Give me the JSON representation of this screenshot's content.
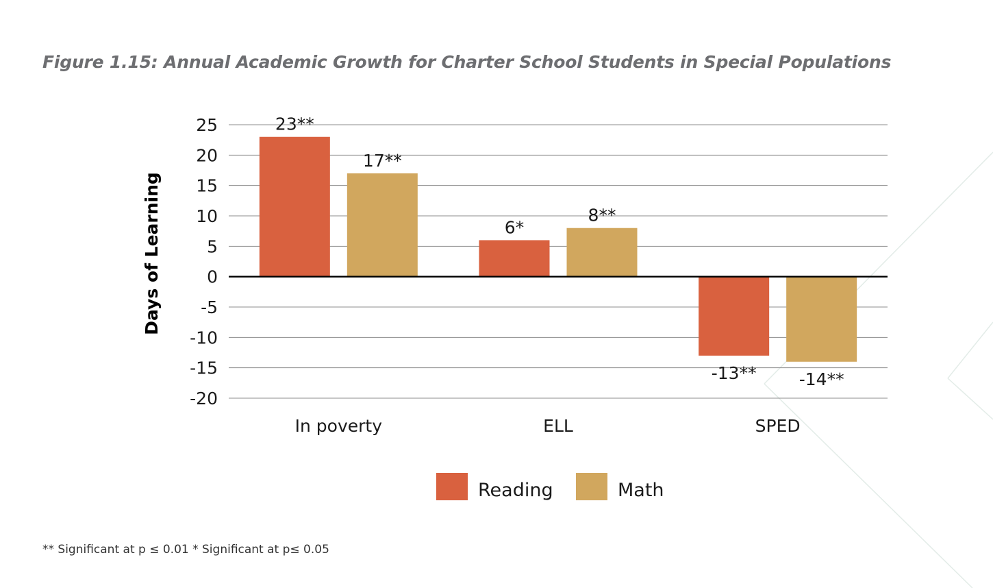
{
  "figure": {
    "title": "Figure 1.15: Annual Academic Growth for Charter School Students in Special Populations",
    "footnote": "** Significant at p ≤ 0.01 * Significant at p≤ 0.05"
  },
  "chart_data": {
    "type": "bar",
    "title": "Figure 1.15: Annual Academic Growth for Charter School Students in Special Populations",
    "xlabel": "",
    "ylabel": "Days of Learning",
    "ylim": [
      -20,
      25
    ],
    "yticks": [
      25,
      20,
      15,
      10,
      5,
      0,
      -5,
      -10,
      -15,
      -20
    ],
    "grid": true,
    "legend_position": "bottom",
    "categories": [
      "In poverty",
      "ELL",
      "SPED"
    ],
    "series": [
      {
        "name": "Reading",
        "color": "#d9613f",
        "values": [
          23,
          6,
          -13
        ],
        "labels": [
          "23**",
          "6*",
          "-13**"
        ]
      },
      {
        "name": "Math",
        "color": "#d1a75e",
        "values": [
          17,
          8,
          -14
        ],
        "labels": [
          "17**",
          "8**",
          "-14**"
        ]
      }
    ]
  }
}
